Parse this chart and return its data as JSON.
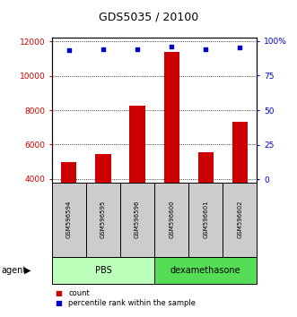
{
  "title": "GDS5035 / 20100",
  "samples": [
    "GSM596594",
    "GSM596595",
    "GSM596596",
    "GSM596600",
    "GSM596601",
    "GSM596602"
  ],
  "counts": [
    4950,
    5450,
    8250,
    11400,
    5550,
    7300
  ],
  "percentiles": [
    93,
    94,
    94,
    96,
    94,
    95
  ],
  "groups": [
    "PBS",
    "PBS",
    "PBS",
    "dexamethasone",
    "dexamethasone",
    "dexamethasone"
  ],
  "group_colors": {
    "PBS": "#bbffbb",
    "dexamethasone": "#55dd55"
  },
  "bar_color": "#cc0000",
  "dot_color": "#0000cc",
  "left_ylim": [
    3800,
    12200
  ],
  "left_yticks": [
    4000,
    6000,
    8000,
    10000,
    12000
  ],
  "right_ylim": [
    -2,
    102
  ],
  "right_yticks": [
    0,
    25,
    50,
    75,
    100
  ],
  "right_yticklabels": [
    "0",
    "25",
    "50",
    "75",
    "100%"
  ],
  "left_tick_color": "#cc0000",
  "right_tick_color": "#0000cc",
  "sample_box_color": "#cccccc",
  "agent_label": "agent",
  "legend_count_label": "count",
  "legend_pct_label": "percentile rank within the sample"
}
